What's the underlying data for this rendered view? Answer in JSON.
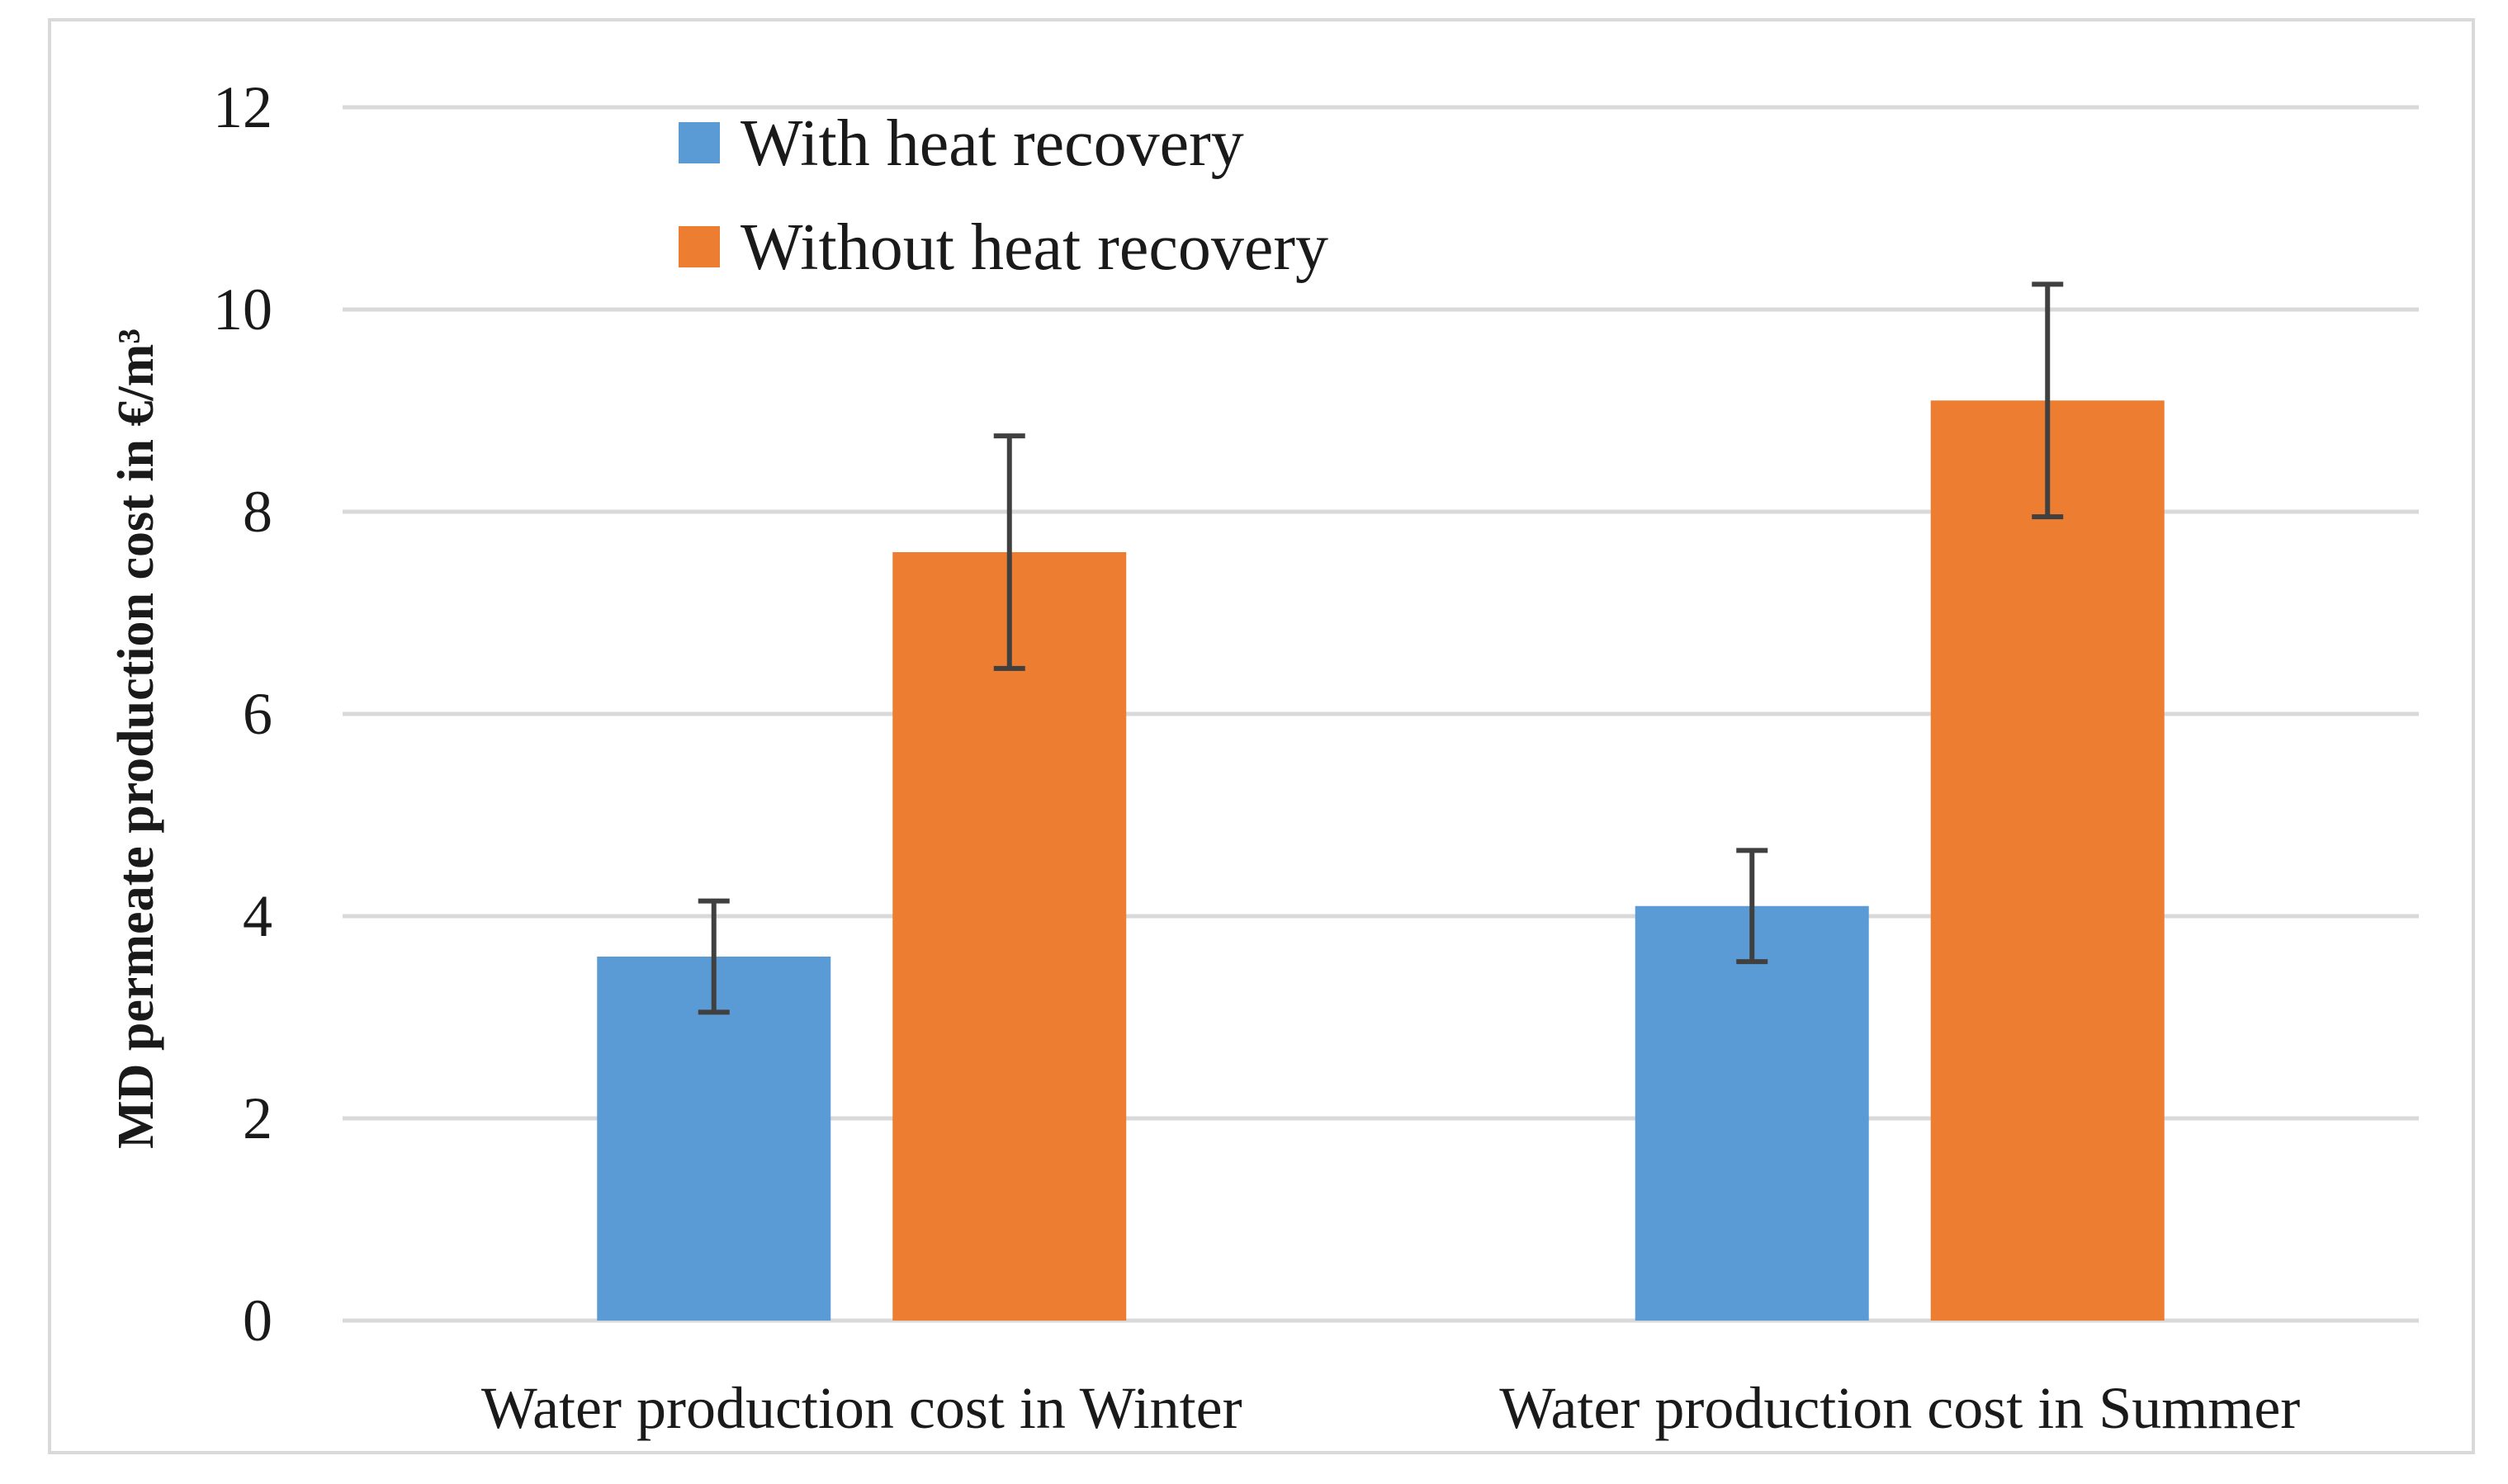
{
  "chart_data": {
    "type": "bar",
    "title": "",
    "xlabel": "",
    "ylabel": "MD permeate production cost in €/m³",
    "ylim": [
      0,
      12
    ],
    "yticks": [
      0,
      2,
      4,
      6,
      8,
      10,
      12
    ],
    "grid": true,
    "legend_position": "top-left",
    "categories": [
      "Water production cost in Winter",
      "Water production cost in Summer"
    ],
    "series": [
      {
        "name": "With heat recovery",
        "color": "#5b9bd5",
        "values": [
          3.6,
          4.1
        ],
        "error_low": [
          3.05,
          3.55
        ],
        "error_high": [
          4.15,
          4.65
        ]
      },
      {
        "name": "Without heat recovery",
        "color": "#ed7d31",
        "values": [
          7.6,
          9.1
        ],
        "error_low": [
          6.45,
          7.95
        ],
        "error_high": [
          8.75,
          10.25
        ]
      }
    ],
    "colors": {
      "grid": "#d9d9d9",
      "error_bar": "#404040",
      "frame": "#d9d9d9"
    }
  }
}
